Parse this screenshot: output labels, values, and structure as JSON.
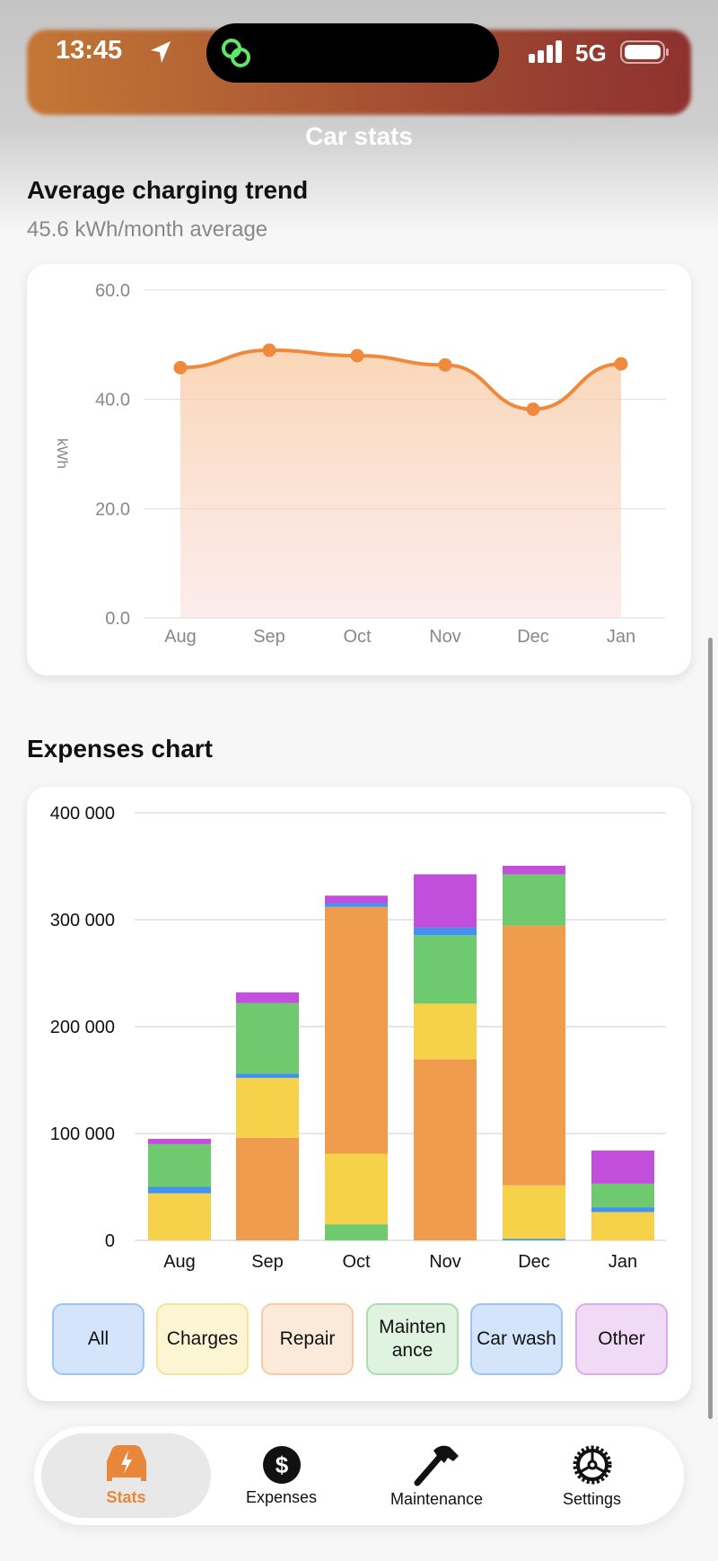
{
  "status_bar": {
    "time": "13:45",
    "network": "5G"
  },
  "header": {
    "title": "Car stats"
  },
  "charging": {
    "title": "Average charging trend",
    "subtitle": "45.6 kWh/month average",
    "chart_data": {
      "type": "area",
      "categories": [
        "Aug",
        "Sep",
        "Oct",
        "Nov",
        "Dec",
        "Jan"
      ],
      "values": [
        45.8,
        49.0,
        48.0,
        46.3,
        38.2,
        46.5
      ],
      "ylabel": "kWh",
      "ylim": [
        0,
        60
      ],
      "yticks": [
        "0.0",
        "20.0",
        "40.0",
        "60.0"
      ],
      "grid": true,
      "color": "#ef8a3c"
    }
  },
  "expenses": {
    "title": "Expenses chart",
    "chart_data": {
      "type": "bar",
      "stacked": true,
      "categories": [
        "Aug",
        "Sep",
        "Oct",
        "Nov",
        "Dec",
        "Jan"
      ],
      "ylim": [
        0,
        400000
      ],
      "yticks": [
        "0",
        "100 000",
        "200 000",
        "300 000",
        "400 000"
      ],
      "grid": true,
      "colors": {
        "Charges": "#f6d24b",
        "Repair": "#ef9c4f",
        "Maintenance": "#6fca6f",
        "Car wash": "#4193f0",
        "Other": "#c24fdb"
      },
      "stacks": [
        [
          [
            "Charges",
            44000
          ],
          [
            "Car wash",
            6000
          ],
          [
            "Maintenance",
            40000
          ],
          [
            "Other",
            5000
          ]
        ],
        [
          [
            "Repair",
            96000
          ],
          [
            "Charges",
            56000
          ],
          [
            "Car wash",
            4000
          ],
          [
            "Maintenance",
            66000
          ],
          [
            "Other",
            10000
          ]
        ],
        [
          [
            "Maintenance",
            15000
          ],
          [
            "Charges",
            66000
          ],
          [
            "Repair",
            231000
          ],
          [
            "Car wash",
            3500
          ],
          [
            "Other",
            7000
          ]
        ],
        [
          [
            "Repair",
            169500
          ],
          [
            "Charges",
            52000
          ],
          [
            "Maintenance",
            64000
          ],
          [
            "Car wash",
            7000
          ],
          [
            "Other",
            50000
          ]
        ],
        [
          [
            "Car wash",
            1500
          ],
          [
            "Charges",
            50000
          ],
          [
            "Repair",
            243000
          ],
          [
            "Maintenance",
            48000
          ],
          [
            "Other",
            8000
          ]
        ],
        [
          [
            "Charges",
            26500
          ],
          [
            "Car wash",
            4500
          ],
          [
            "Maintenance",
            22000
          ],
          [
            "Other",
            31000
          ]
        ]
      ]
    },
    "filters": [
      {
        "label": "All",
        "bg": "#d4e5fb",
        "border": "#9cc4f5"
      },
      {
        "label": "Charges",
        "bg": "#fcf5d4",
        "border": "#f7e49a"
      },
      {
        "label": "Repair",
        "bg": "#fbe9da",
        "border": "#f5cba8"
      },
      {
        "label": "Mainten ance",
        "bg": "#dff3e0",
        "border": "#a9dfab"
      },
      {
        "label": "Car wash",
        "bg": "#d4e5fb",
        "border": "#9cc4f5"
      },
      {
        "label": "Other",
        "bg": "#f1daf5",
        "border": "#ddaaea"
      }
    ]
  },
  "tabs": [
    {
      "label": "Stats",
      "icon": "car-bolt-icon",
      "selected": true
    },
    {
      "label": "Expenses",
      "icon": "dollar-icon"
    },
    {
      "label": "Maintenance",
      "icon": "hammer-icon"
    },
    {
      "label": "Settings",
      "icon": "gear-icon"
    }
  ]
}
